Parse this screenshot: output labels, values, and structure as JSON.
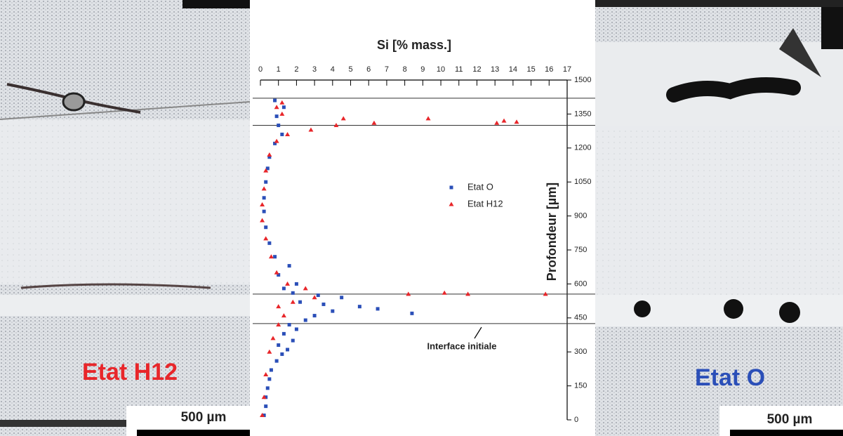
{
  "chart_data": {
    "type": "scatter",
    "title": "Si [% mass.]",
    "y_label": "Profondeur [µm]",
    "xlim": [
      0,
      17
    ],
    "xticks": [
      0,
      1,
      2,
      3,
      4,
      5,
      6,
      7,
      8,
      9,
      10,
      11,
      12,
      13,
      14,
      15,
      16,
      17
    ],
    "ylim": [
      0,
      1500
    ],
    "yticks": [
      0,
      150,
      300,
      450,
      600,
      750,
      900,
      1050,
      1200,
      1350,
      1500
    ],
    "reference_lines": [
      1420,
      1300,
      555,
      425
    ],
    "annotation": "Interface initiale",
    "series": [
      {
        "name": "Etat O",
        "color": "#2b4fb8",
        "marker": "square",
        "x": [
          0.2,
          0.3,
          0.3,
          0.4,
          0.5,
          0.6,
          0.9,
          1.2,
          1.5,
          1.0,
          1.8,
          1.3,
          2.0,
          1.6,
          2.5,
          3.0,
          8.4,
          4.0,
          6.5,
          5.5,
          3.5,
          2.2,
          4.5,
          3.2,
          1.8,
          1.3,
          2.0,
          1.0,
          1.6,
          0.8,
          0.5,
          0.3,
          0.2,
          0.2,
          0.3,
          0.4,
          0.5,
          0.8,
          1.2,
          1.0,
          0.9,
          1.3,
          0.8
        ],
        "values": [
          20,
          60,
          100,
          140,
          180,
          220,
          260,
          290,
          310,
          330,
          350,
          380,
          400,
          420,
          440,
          460,
          470,
          480,
          490,
          500,
          510,
          520,
          540,
          550,
          560,
          580,
          600,
          640,
          680,
          720,
          780,
          850,
          920,
          980,
          1050,
          1110,
          1160,
          1220,
          1260,
          1300,
          1340,
          1380,
          1410
        ]
      },
      {
        "name": "Etat H12",
        "color": "#e8262a",
        "marker": "triangle",
        "x": [
          0.1,
          0.2,
          0.3,
          0.5,
          0.7,
          1.0,
          1.3,
          1.0,
          1.8,
          3.0,
          10.2,
          11.5,
          8.2,
          15.8,
          2.5,
          1.5,
          0.9,
          0.6,
          0.3,
          0.1,
          0.1,
          0.2,
          0.3,
          0.5,
          0.9,
          1.5,
          2.8,
          4.2,
          6.3,
          9.3,
          13.1,
          13.5,
          14.2,
          4.6,
          1.2,
          0.9,
          1.2
        ],
        "values": [
          20,
          100,
          200,
          300,
          360,
          420,
          460,
          500,
          520,
          540,
          560,
          555,
          555,
          555,
          580,
          600,
          650,
          720,
          800,
          880,
          950,
          1020,
          1100,
          1170,
          1230,
          1260,
          1280,
          1300,
          1310,
          1330,
          1310,
          1320,
          1315,
          1330,
          1350,
          1380,
          1400
        ]
      }
    ]
  },
  "images": [
    {
      "label": "Etat H12",
      "label_color": "#e8262a",
      "scale_bar": "500 µm"
    },
    {
      "label": "Etat O",
      "label_color": "#2b4fb8",
      "scale_bar": "500 µm"
    }
  ]
}
